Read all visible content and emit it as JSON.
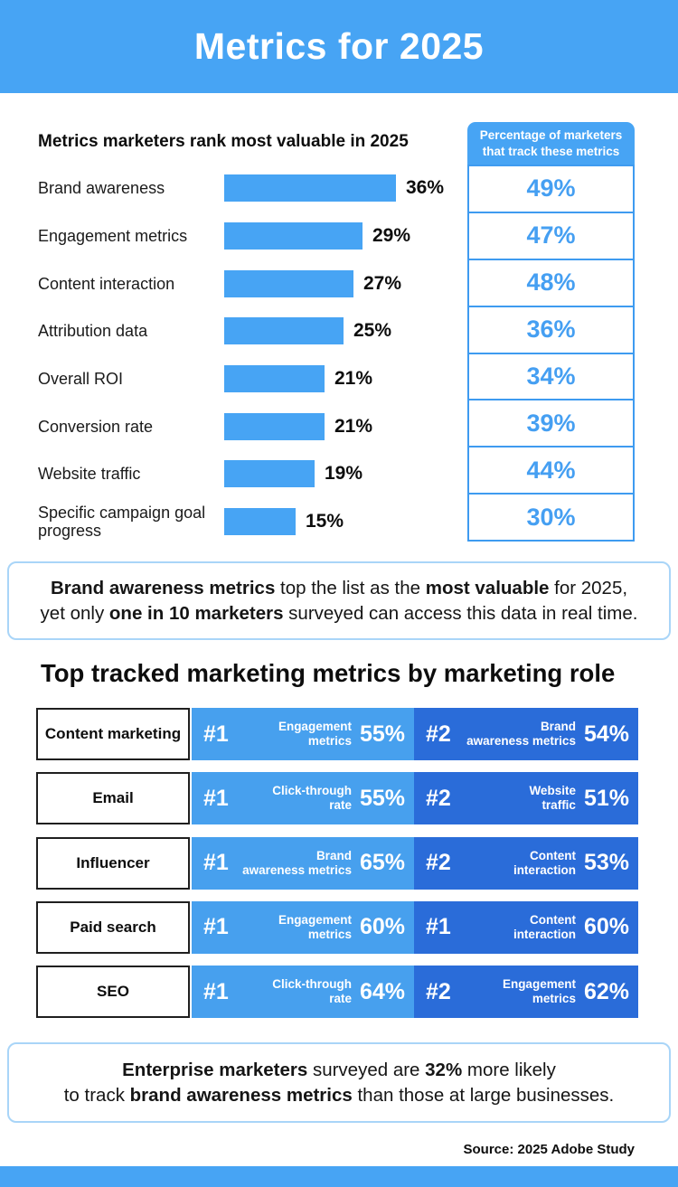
{
  "header": {
    "title": "Metrics for 2025"
  },
  "colors": {
    "primary_blue": "#47A4F4",
    "track_border_blue": "#3E9BF0",
    "track_value_blue": "#459FF2",
    "callout_border_blue": "#A9D5F8",
    "table_light_blue": "#47A0EE",
    "table_dark_blue": "#2A6CD9"
  },
  "chart_data": [
    {
      "type": "bar",
      "orientation": "horizontal",
      "title": "Metrics marketers rank most valuable in 2025",
      "categories": [
        "Brand awareness",
        "Engagement metrics",
        "Content interaction",
        "Attribution data",
        "Overall ROI",
        "Conversion rate",
        "Website traffic",
        "Specific campaign goal progress"
      ],
      "series": [
        {
          "name": "Metrics marketers rank most valuable in 2025",
          "values": [
            36,
            29,
            27,
            25,
            21,
            21,
            19,
            15
          ]
        },
        {
          "name": "Percentage of marketers that track these metrics",
          "values": [
            49,
            47,
            48,
            36,
            34,
            39,
            44,
            30
          ]
        }
      ],
      "value_suffix": "%",
      "xlim": [
        0,
        40
      ],
      "grid": false,
      "legend": "none"
    },
    {
      "type": "table",
      "title": "Top tracked marketing metrics by marketing role",
      "rows": [
        {
          "role": "Content marketing",
          "entries": [
            {
              "rank": "#1",
              "metric": "Engagement metrics",
              "metric_lines": [
                "Engagement",
                "metrics"
              ],
              "value": "55%"
            },
            {
              "rank": "#2",
              "metric": "Brand awareness metrics",
              "metric_lines": [
                "Brand",
                "awareness metrics"
              ],
              "value": "54%"
            }
          ]
        },
        {
          "role": "Email",
          "entries": [
            {
              "rank": "#1",
              "metric": "Click-through rate",
              "metric_lines": [
                "Click-through",
                "rate"
              ],
              "value": "55%"
            },
            {
              "rank": "#2",
              "metric": "Website traffic",
              "metric_lines": [
                "Website",
                "traffic"
              ],
              "value": "51%"
            }
          ]
        },
        {
          "role": "Influencer",
          "entries": [
            {
              "rank": "#1",
              "metric": "Brand awareness metrics",
              "metric_lines": [
                "Brand",
                "awareness metrics"
              ],
              "value": "65%"
            },
            {
              "rank": "#2",
              "metric": "Content interaction",
              "metric_lines": [
                "Content",
                "interaction"
              ],
              "value": "53%"
            }
          ]
        },
        {
          "role": "Paid search",
          "entries": [
            {
              "rank": "#1",
              "metric": "Engagement metrics",
              "metric_lines": [
                "Engagement",
                "metrics"
              ],
              "value": "60%"
            },
            {
              "rank": "#1",
              "metric": "Content interaction",
              "metric_lines": [
                "Content",
                "interaction"
              ],
              "value": "60%"
            }
          ]
        },
        {
          "role": "SEO",
          "entries": [
            {
              "rank": "#1",
              "metric": "Click-through rate",
              "metric_lines": [
                "Click-through",
                "rate"
              ],
              "value": "64%"
            },
            {
              "rank": "#2",
              "metric": "Engagement metrics",
              "metric_lines": [
                "Engagement",
                "metrics"
              ],
              "value": "62%"
            }
          ]
        }
      ]
    }
  ],
  "callout1": {
    "lines": [
      [
        {
          "t": "Brand awareness metrics",
          "b": true
        },
        {
          "t": " top the list as the ",
          "b": false
        },
        {
          "t": "most valuable",
          "b": true
        },
        {
          "t": " for 2025,",
          "b": false
        }
      ],
      [
        {
          "t": "yet only ",
          "b": false
        },
        {
          "t": "one in 10 marketers",
          "b": true
        },
        {
          "t": " surveyed can access this data in real time.",
          "b": false
        }
      ]
    ]
  },
  "callout2": {
    "lines": [
      [
        {
          "t": "Enterprise marketers",
          "b": true
        },
        {
          "t": " surveyed are ",
          "b": false
        },
        {
          "t": "32%",
          "b": true
        },
        {
          "t": " more likely",
          "b": false
        }
      ],
      [
        {
          "t": "to track ",
          "b": false
        },
        {
          "t": "brand awareness metrics",
          "b": true
        },
        {
          "t": " than those at large businesses.",
          "b": false
        }
      ]
    ]
  },
  "footer": {
    "source": "Source: 2025 Adobe Study"
  }
}
